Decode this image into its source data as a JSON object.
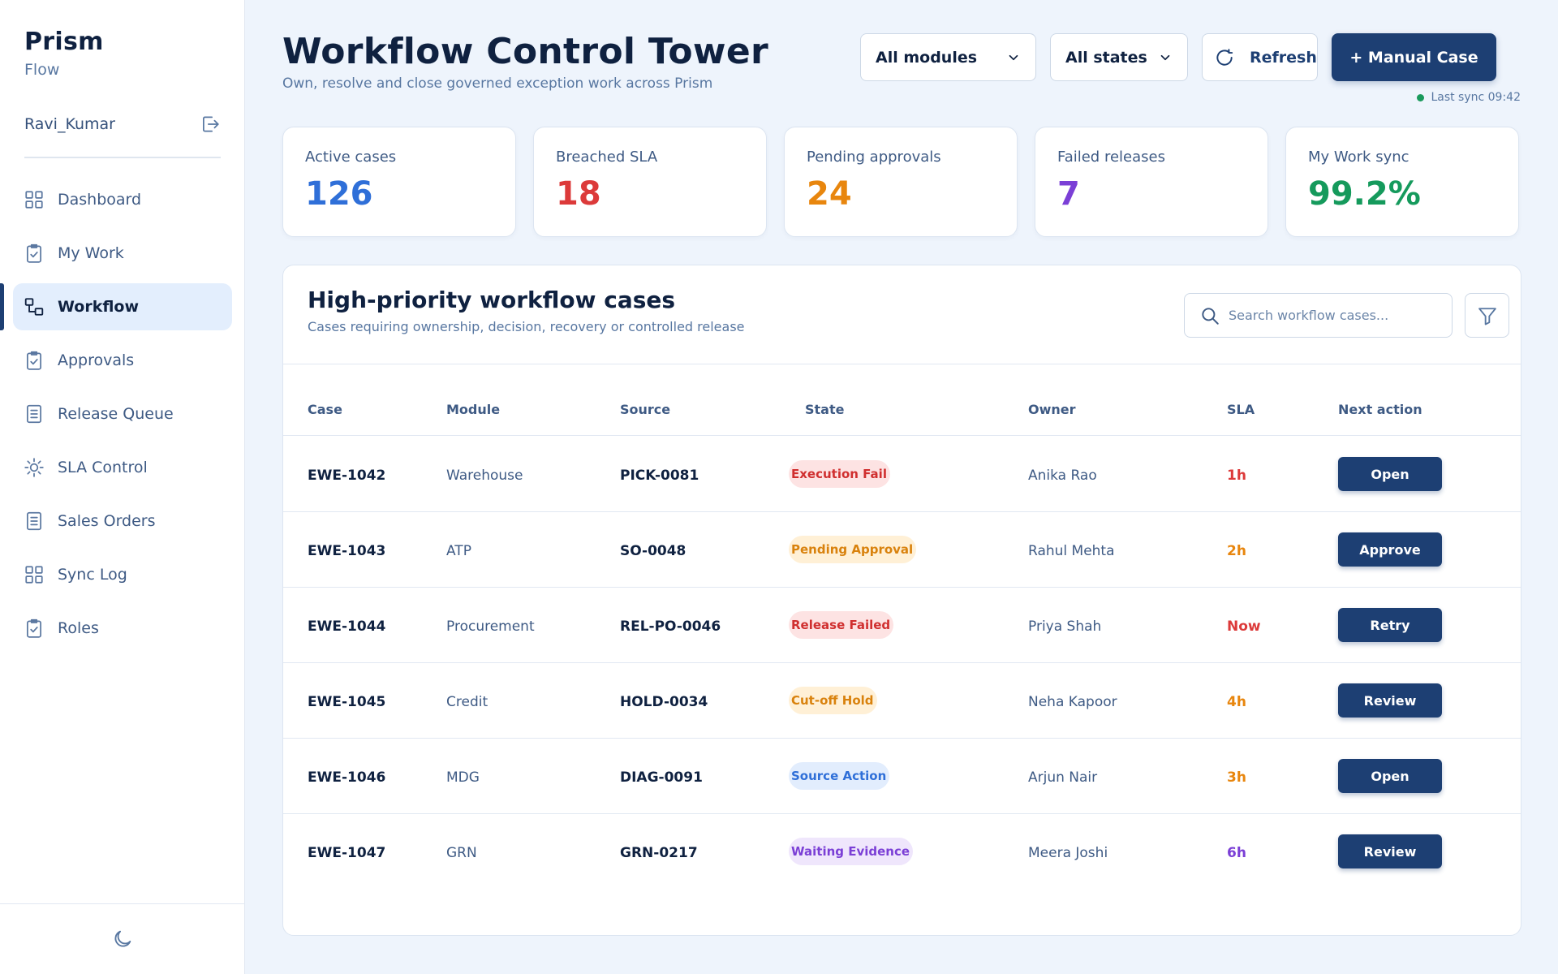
{
  "brand": {
    "name": "Prism",
    "sub": "Flow"
  },
  "user": {
    "name": "Ravi_Kumar"
  },
  "nav": [
    {
      "label": "Dashboard",
      "icon": "grid-icon",
      "active": false
    },
    {
      "label": "My Work",
      "icon": "clipboard-check-icon",
      "active": false
    },
    {
      "label": "Workflow",
      "icon": "workflow-icon",
      "active": true
    },
    {
      "label": "Approvals",
      "icon": "clipboard-check-icon",
      "active": false
    },
    {
      "label": "Release Queue",
      "icon": "document-icon",
      "active": false
    },
    {
      "label": "SLA Control",
      "icon": "sun-gear-icon",
      "active": false
    },
    {
      "label": "Sales Orders",
      "icon": "document-icon",
      "active": false
    },
    {
      "label": "Sync Log",
      "icon": "grid-icon",
      "active": false
    },
    {
      "label": "Roles",
      "icon": "clipboard-check-icon",
      "active": false
    }
  ],
  "header": {
    "title": "Workflow Control Tower",
    "subtitle": "Own, resolve and close governed exception work across Prism",
    "module_filter": "All modules",
    "state_filter": "All states",
    "refresh_label": "Refresh",
    "manual_case_label": "+ Manual Case",
    "last_sync": "Last sync 09:42"
  },
  "kpis": [
    {
      "label": "Active cases",
      "value": "126",
      "color": "#2f6fd8"
    },
    {
      "label": "Breached SLA",
      "value": "18",
      "color": "#dc3a3a"
    },
    {
      "label": "Pending approvals",
      "value": "24",
      "color": "#e8860e"
    },
    {
      "label": "Failed releases",
      "value": "7",
      "color": "#7b3fd6"
    },
    {
      "label": "My Work sync",
      "value": "99.2%",
      "color": "#159a5c"
    }
  ],
  "panel": {
    "title": "High-priority workflow cases",
    "subtitle": "Cases requiring ownership, decision, recovery or controlled release",
    "search_placeholder": "Search workflow cases..."
  },
  "table": {
    "columns": [
      "Case",
      "Module",
      "Source",
      "State",
      "Owner",
      "SLA",
      "Next action"
    ],
    "rows": [
      {
        "case": "EWE-1042",
        "module": "Warehouse",
        "source": "PICK-0081",
        "state": "Execution Fail",
        "state_bg": "#fde3e3",
        "state_fg": "#d02f2f",
        "owner": "Anika Rao",
        "sla": "1h",
        "sla_color": "#dc3a3a",
        "action": "Open"
      },
      {
        "case": "EWE-1043",
        "module": "ATP",
        "source": "SO-0048",
        "state": "Pending Approval",
        "state_bg": "#fff0d6",
        "state_fg": "#d9820d",
        "owner": "Rahul Mehta",
        "sla": "2h",
        "sla_color": "#e8860e",
        "action": "Approve"
      },
      {
        "case": "EWE-1044",
        "module": "Procurement",
        "source": "REL-PO-0046",
        "state": "Release Failed",
        "state_bg": "#fde3e3",
        "state_fg": "#d02f2f",
        "owner": "Priya Shah",
        "sla": "Now",
        "sla_color": "#dc3a3a",
        "action": "Retry"
      },
      {
        "case": "EWE-1045",
        "module": "Credit",
        "source": "HOLD-0034",
        "state": "Cut-off Hold",
        "state_bg": "#fff0d6",
        "state_fg": "#d9820d",
        "owner": "Neha Kapoor",
        "sla": "4h",
        "sla_color": "#e8860e",
        "action": "Review"
      },
      {
        "case": "EWE-1046",
        "module": "MDG",
        "source": "DIAG-0091",
        "state": "Source Action",
        "state_bg": "#e2edfd",
        "state_fg": "#2f6fd8",
        "owner": "Arjun Nair",
        "sla": "3h",
        "sla_color": "#e8860e",
        "action": "Open"
      },
      {
        "case": "EWE-1047",
        "module": "GRN",
        "source": "GRN-0217",
        "state": "Waiting Evidence",
        "state_bg": "#efe6fc",
        "state_fg": "#7b3fd6",
        "owner": "Meera Joshi",
        "sla": "6h",
        "sla_color": "#7b3fd6",
        "action": "Review"
      }
    ]
  }
}
